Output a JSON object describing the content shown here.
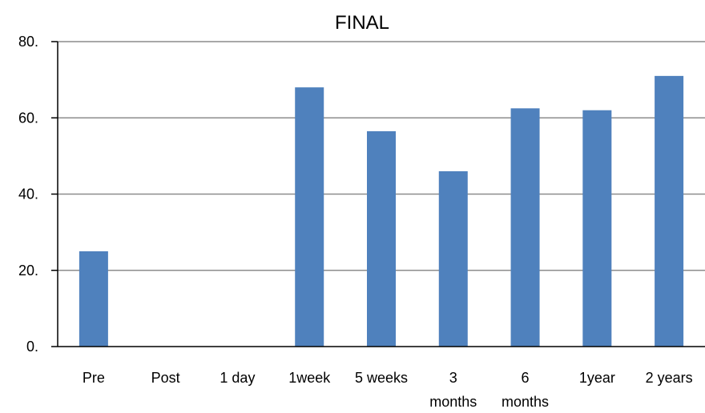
{
  "chart_data": {
    "type": "bar",
    "title": "FINAL",
    "xlabel": "",
    "ylabel": "",
    "ylim": [
      0,
      80
    ],
    "y_ticks": [
      "0.",
      "20.",
      "40.",
      "60.",
      "80."
    ],
    "categories": [
      "Pre",
      "Post",
      "1 day",
      "1week",
      "5 weeks",
      "3 months",
      "6 months",
      "1year",
      "2 years"
    ],
    "values": [
      25,
      0,
      0,
      68,
      56.5,
      46,
      62.5,
      62,
      71
    ],
    "grid": true,
    "legend": "none",
    "colors": {
      "bar": "#4f81bd",
      "grid": "#8c8c8c",
      "axis": "#000000"
    }
  }
}
